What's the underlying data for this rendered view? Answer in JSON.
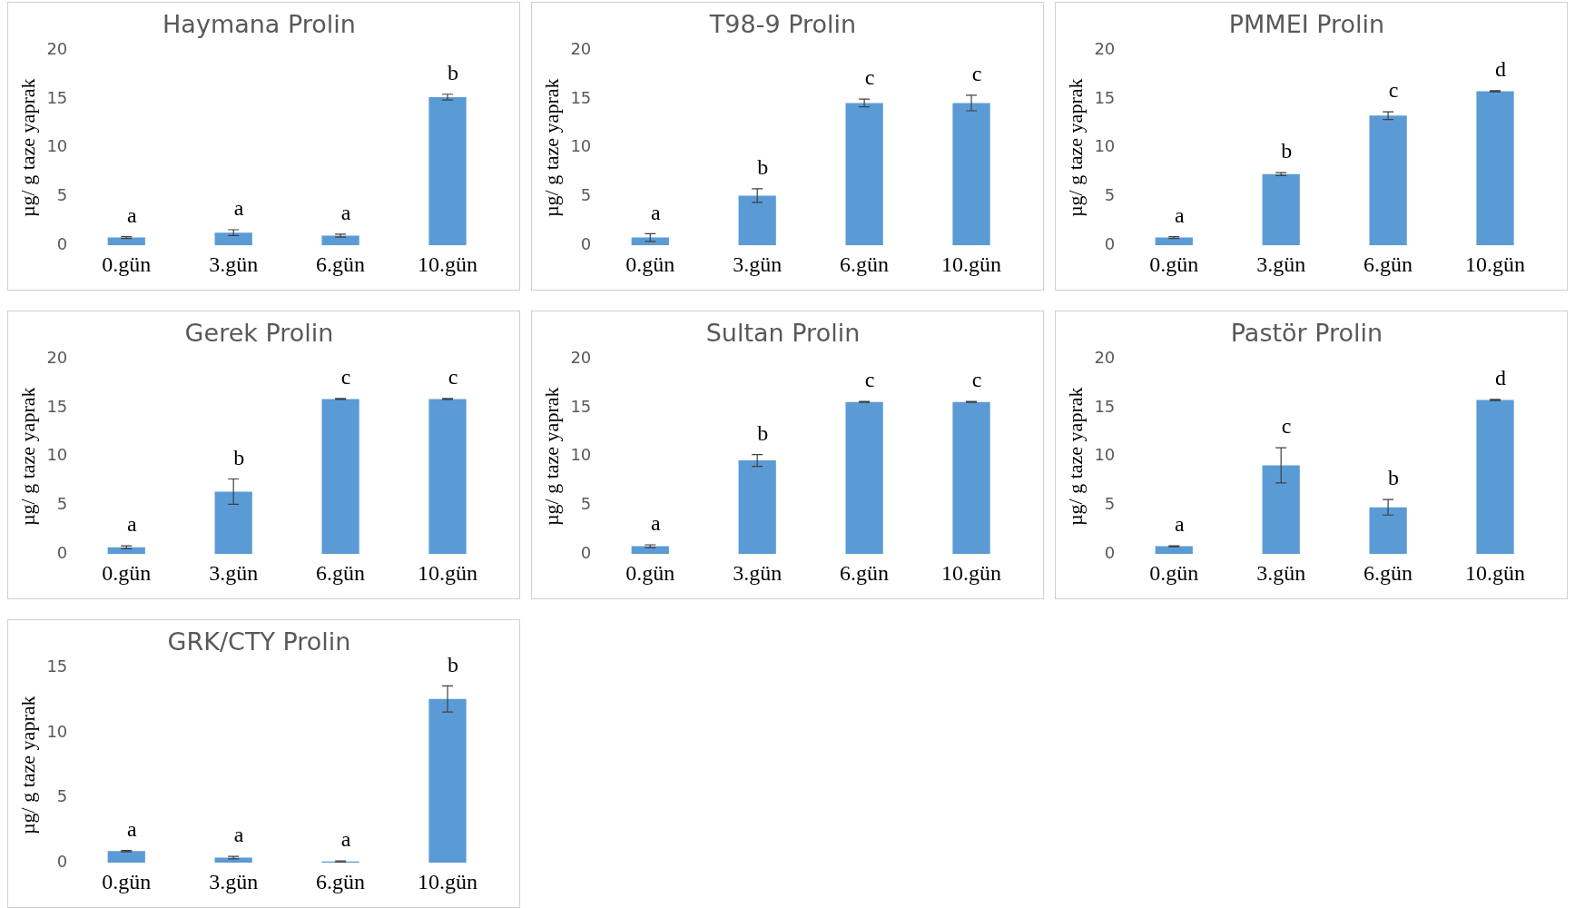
{
  "chart_data": [
    {
      "type": "bar",
      "title": "Haymana Prolin",
      "ylabel": "µg/ g taze yaprak",
      "categories": [
        "0.gün",
        "3.gün",
        "6.gün",
        "10.gün"
      ],
      "values": [
        0.8,
        1.3,
        1.0,
        15.2
      ],
      "errors": [
        0.1,
        0.3,
        0.15,
        0.3
      ],
      "color": "#5b9bd5",
      "ylim": [
        0,
        20
      ],
      "yticks": [
        0,
        5,
        10,
        15,
        20
      ],
      "value_labels": [
        "a",
        "a",
        "a",
        "b"
      ]
    },
    {
      "type": "bar",
      "title": "T98-9 Prolin",
      "ylabel": "µg/ g taze yaprak",
      "categories": [
        "0.gün",
        "3.gün",
        "6.gün",
        "10.gün"
      ],
      "values": [
        0.8,
        5.1,
        14.6,
        14.6
      ],
      "errors": [
        0.4,
        0.7,
        0.4,
        0.8
      ],
      "color": "#5b9bd5",
      "ylim": [
        0,
        20
      ],
      "yticks": [
        0,
        5,
        10,
        15,
        20
      ],
      "value_labels": [
        "a",
        "b",
        "c",
        "c"
      ]
    },
    {
      "type": "bar",
      "title": "PMMEI Prolin",
      "ylabel": "µg/ g taze yaprak",
      "categories": [
        "0.gün",
        "3.gün",
        "6.gün",
        "10.gün"
      ],
      "values": [
        0.8,
        7.3,
        13.3,
        15.8
      ],
      "errors": [
        0.1,
        0.15,
        0.4,
        0.05
      ],
      "color": "#5b9bd5",
      "ylim": [
        0,
        20
      ],
      "yticks": [
        0,
        5,
        10,
        15,
        20
      ],
      "value_labels": [
        "a",
        "b",
        "c",
        "d"
      ]
    },
    {
      "type": "bar",
      "title": "Gerek Prolin",
      "ylabel": "µg/ g taze yaprak",
      "categories": [
        "0.gün",
        "3.gün",
        "6.gün",
        "10.gün"
      ],
      "values": [
        0.7,
        6.4,
        15.9,
        15.9
      ],
      "errors": [
        0.15,
        1.3,
        0.05,
        0.05
      ],
      "color": "#5b9bd5",
      "ylim": [
        0,
        20
      ],
      "yticks": [
        0,
        5,
        10,
        15,
        20
      ],
      "value_labels": [
        "a",
        "b",
        "c",
        "c"
      ]
    },
    {
      "type": "bar",
      "title": "Sultan Prolin",
      "ylabel": "µg/ g taze yaprak",
      "categories": [
        "0.gün",
        "3.gün",
        "6.gün",
        "10.gün"
      ],
      "values": [
        0.8,
        9.6,
        15.6,
        15.6
      ],
      "errors": [
        0.15,
        0.6,
        0.05,
        0.05
      ],
      "color": "#5b9bd5",
      "ylim": [
        0,
        20
      ],
      "yticks": [
        0,
        5,
        10,
        15,
        20
      ],
      "value_labels": [
        "a",
        "b",
        "c",
        "c"
      ]
    },
    {
      "type": "bar",
      "title": "Pastör Prolin",
      "ylabel": "µg/ g taze yaprak",
      "categories": [
        "0.gün",
        "3.gün",
        "6.gün",
        "10.gün"
      ],
      "values": [
        0.8,
        9.1,
        4.8,
        15.8
      ],
      "errors": [
        0.05,
        1.8,
        0.8,
        0.05
      ],
      "color": "#5b9bd5",
      "ylim": [
        0,
        20
      ],
      "yticks": [
        0,
        5,
        10,
        15,
        20
      ],
      "value_labels": [
        "a",
        "c",
        "b",
        "d"
      ]
    },
    {
      "type": "bar",
      "title": "GRK/CTY Prolin",
      "ylabel": "µg/ g taze yaprak",
      "categories": [
        "0.gün",
        "3.gün",
        "6.gün",
        "10.gün"
      ],
      "values": [
        0.9,
        0.4,
        0.1,
        12.6
      ],
      "errors": [
        0.05,
        0.1,
        0.05,
        1.0
      ],
      "color": "#5b9bd5",
      "ylim": [
        0,
        15
      ],
      "yticks": [
        0,
        5,
        10,
        15
      ],
      "value_labels": [
        "a",
        "a",
        "a",
        "b"
      ]
    }
  ]
}
